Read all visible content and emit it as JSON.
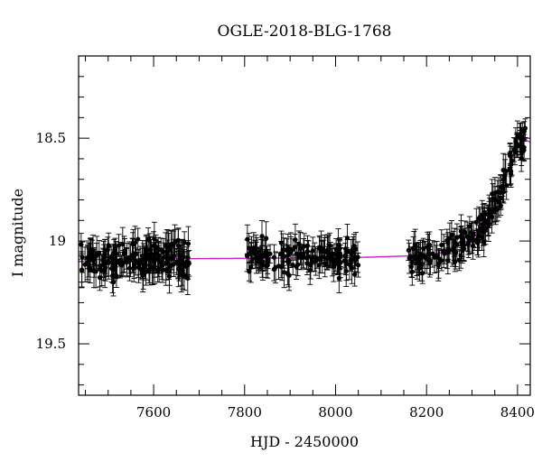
{
  "chart_data": {
    "type": "scatter",
    "title": "OGLE-2018-BLG-1768",
    "xlabel": "HJD - 2450000",
    "ylabel": "I magnitude",
    "xlim": [
      7435,
      8428
    ],
    "ylim": [
      19.75,
      18.1
    ],
    "y_inverted": true,
    "x_ticks": [
      7600,
      7800,
      8000,
      8200,
      8400
    ],
    "y_ticks": [
      18.5,
      19,
      19.5
    ],
    "x_minor_step": 50,
    "y_minor_step": 0.1,
    "grid": false,
    "colors": {
      "points": "#000000",
      "model": "#cc22cc",
      "frame": "#000000"
    },
    "series": [
      {
        "type": "scatter_errorbar",
        "segments": [
          {
            "x_start": 7440,
            "x_end": 7682,
            "n": 190,
            "baseline": 19.09,
            "scatter": 0.08,
            "err": 0.065
          },
          {
            "x_start": 7805,
            "x_end": 8050,
            "n": 150,
            "baseline": 19.08,
            "scatter": 0.075,
            "err": 0.06
          },
          {
            "x_start": 8160,
            "x_end": 8420,
            "n": 175,
            "baseline": 19.08,
            "scatter": 0.07,
            "err": 0.06,
            "follows_model": true
          }
        ]
      },
      {
        "type": "line",
        "model": {
          "baseline": 19.09,
          "rise_points": [
            [
              7440,
              19.09
            ],
            [
              8050,
              19.08
            ],
            [
              8200,
              19.07
            ],
            [
              8250,
              19.05
            ],
            [
              8290,
              19.0
            ],
            [
              8320,
              18.93
            ],
            [
              8345,
              18.85
            ],
            [
              8360,
              18.77
            ],
            [
              8375,
              18.69
            ],
            [
              8385,
              18.62
            ],
            [
              8395,
              18.56
            ],
            [
              8405,
              18.52
            ],
            [
              8412,
              18.51
            ],
            [
              8420,
              18.51
            ],
            [
              8428,
              18.52
            ]
          ]
        }
      }
    ]
  }
}
